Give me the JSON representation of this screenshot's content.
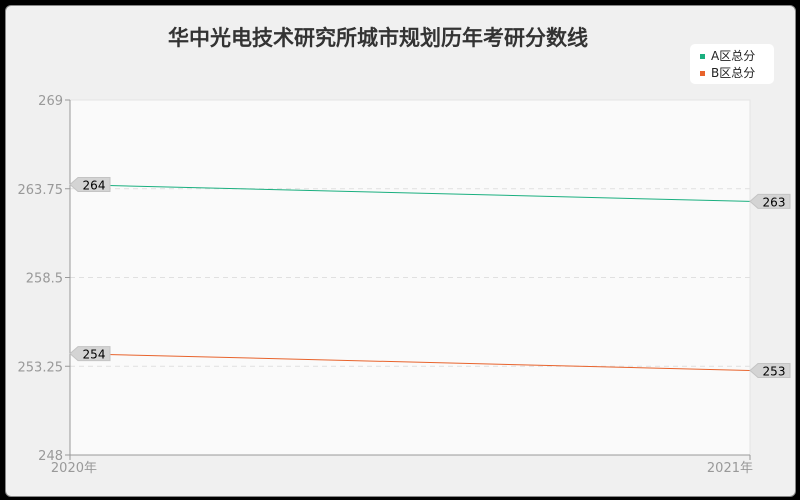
{
  "chart_data": {
    "type": "line",
    "title": "华中光电技术研究所城市规划历年考研分数线",
    "categories": [
      "2020年",
      "2021年"
    ],
    "series": [
      {
        "name": "A区总分",
        "values": [
          264,
          263
        ],
        "color": "#1aaf7f"
      },
      {
        "name": "B区总分",
        "values": [
          254,
          253
        ],
        "color": "#e8632c"
      }
    ],
    "yticks": [
      "248",
      "253.25",
      "258.5",
      "263.75",
      "269"
    ],
    "ylim": [
      248,
      269
    ],
    "grid": true,
    "legend": "top-right"
  }
}
